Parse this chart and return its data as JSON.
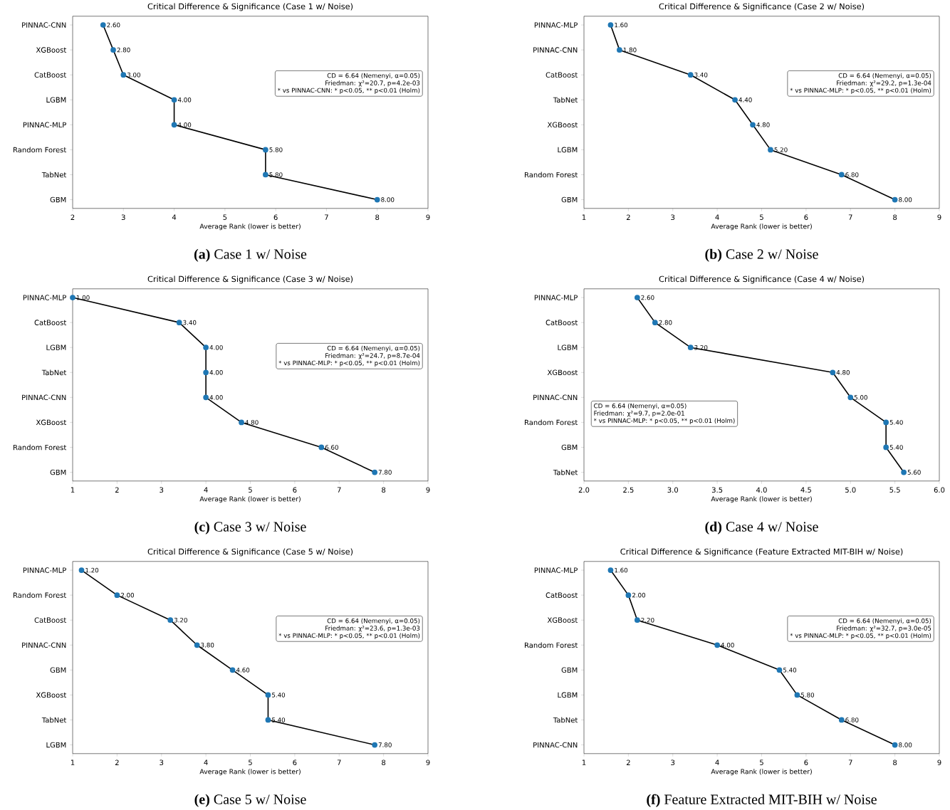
{
  "chart_data": [
    {
      "type": "line",
      "orientation": "horizontal",
      "marker": "circle",
      "color": "#1f77b4",
      "title": "Critical Difference & Significance (Case 1 w/ Noise)",
      "xlabel": "Average Rank (lower is better)",
      "categories": [
        "PINNAC-CNN",
        "XGBoost",
        "CatBoost",
        "LGBM",
        "PINNAC-MLP",
        "Random Forest",
        "TabNet",
        "GBM"
      ],
      "values": [
        2.6,
        2.8,
        3.0,
        4.0,
        4.0,
        5.8,
        5.8,
        8.0
      ],
      "value_labels": [
        "2.60",
        "2.80",
        "3.00",
        "4.00",
        "4.00",
        "5.80",
        "5.80",
        "8.00"
      ],
      "xlim": [
        2,
        9
      ],
      "xticks": [
        2,
        3,
        4,
        5,
        6,
        7,
        8,
        9
      ],
      "annotations": [
        "CD = 6.64 (Nemenyi, α=0.05)",
        "Friedman: χ²=20.7, p=4.2e-03",
        "* vs PINNAC-CNN: * p<0.05, ** p<0.01 (Holm)",
        "**(a)** Case 1 w/ Noise"
      ]
    },
    {
      "type": "line",
      "orientation": "horizontal",
      "marker": "circle",
      "color": "#1f77b4",
      "title": "Critical Difference & Significance (Case 2 w/ Noise)",
      "xlabel": "Average Rank (lower is better)",
      "categories": [
        "PINNAC-MLP",
        "PINNAC-CNN",
        "CatBoost",
        "TabNet",
        "XGBoost",
        "LGBM",
        "Random Forest",
        "GBM"
      ],
      "values": [
        1.6,
        1.8,
        3.4,
        4.4,
        4.8,
        5.2,
        6.8,
        8.0
      ],
      "value_labels": [
        "1.60",
        "1.80",
        "3.40",
        "4.40",
        "4.80",
        "5.20",
        "6.80",
        "8.00"
      ],
      "xlim": [
        1,
        9
      ],
      "xticks": [
        1,
        2,
        3,
        4,
        5,
        6,
        7,
        8,
        9
      ],
      "annotations": [
        "CD = 6.64 (Nemenyi, α=0.05)",
        "Friedman: χ²=29.2, p=1.3e-04",
        "* vs PINNAC-MLP: * p<0.05, ** p<0.01 (Holm)",
        "**(b)** Case 2 w/ Noise"
      ]
    },
    {
      "type": "line",
      "orientation": "horizontal",
      "marker": "circle",
      "color": "#1f77b4",
      "title": "Critical Difference & Significance (Case 3 w/ Noise)",
      "xlabel": "Average Rank (lower is better)",
      "categories": [
        "PINNAC-MLP",
        "CatBoost",
        "LGBM",
        "TabNet",
        "PINNAC-CNN",
        "XGBoost",
        "Random Forest",
        "GBM"
      ],
      "values": [
        1.0,
        3.4,
        4.0,
        4.0,
        4.0,
        4.8,
        6.6,
        7.8
      ],
      "value_labels": [
        "1.00",
        "3.40",
        "4.00",
        "4.00",
        "4.00",
        "4.80",
        "6.60",
        "7.80"
      ],
      "xlim": [
        1,
        9
      ],
      "xticks": [
        1,
        2,
        3,
        4,
        5,
        6,
        7,
        8,
        9
      ],
      "annotations": [
        "CD = 6.64 (Nemenyi, α=0.05)",
        "Friedman: χ²=24.7, p=8.7e-04",
        "* vs PINNAC-MLP: * p<0.05, ** p<0.01 (Holm)",
        "**(c)** Case 3 w/ Noise"
      ]
    },
    {
      "type": "line",
      "orientation": "horizontal",
      "marker": "circle",
      "color": "#1f77b4",
      "title": "Critical Difference & Significance (Case 4 w/ Noise)",
      "xlabel": "Average Rank (lower is better)",
      "categories": [
        "PINNAC-MLP",
        "CatBoost",
        "LGBM",
        "XGBoost",
        "PINNAC-CNN",
        "Random Forest",
        "GBM",
        "TabNet"
      ],
      "values": [
        2.6,
        2.8,
        3.2,
        4.8,
        5.0,
        5.4,
        5.4,
        5.6
      ],
      "value_labels": [
        "2.60",
        "2.80",
        "3.20",
        "4.80",
        "5.00",
        "5.40",
        "5.40",
        "5.60"
      ],
      "xlim": [
        2,
        6
      ],
      "xticks": [
        {
          "value": 2,
          "label": "2.0"
        },
        {
          "value": 2.5,
          "label": "2.5"
        },
        {
          "value": 3,
          "label": "3.0"
        },
        {
          "value": 3.5,
          "label": "3.5"
        },
        {
          "value": 4,
          "label": "4.0"
        },
        {
          "value": 4.5,
          "label": "4.5"
        },
        {
          "value": 5,
          "label": "5.0"
        },
        {
          "value": 5.5,
          "label": "5.5"
        },
        {
          "value": 6,
          "label": "6.0"
        }
      ],
      "annotations": [
        "CD = 6.64 (Nemenyi, α=0.05)",
        "Friedman: χ²=9.7, p=2.0e-01",
        "* vs PINNAC-MLP: * p<0.05, ** p<0.01 (Holm)",
        "**(d)** Case 4 w/ Noise"
      ]
    },
    {
      "type": "line",
      "orientation": "horizontal",
      "marker": "circle",
      "color": "#1f77b4",
      "title": "Critical Difference & Significance (Case 5 w/ Noise)",
      "xlabel": "Average Rank (lower is better)",
      "categories": [
        "PINNAC-MLP",
        "Random Forest",
        "CatBoost",
        "PINNAC-CNN",
        "GBM",
        "XGBoost",
        "TabNet",
        "LGBM"
      ],
      "values": [
        1.2,
        2.0,
        3.2,
        3.8,
        4.6,
        5.4,
        5.4,
        7.8
      ],
      "value_labels": [
        "1.20",
        "2.00",
        "3.20",
        "3.80",
        "4.60",
        "5.40",
        "5.40",
        "7.80"
      ],
      "xlim": [
        1,
        9
      ],
      "xticks": [
        1,
        2,
        3,
        4,
        5,
        6,
        7,
        8,
        9
      ],
      "annotations": [
        "CD = 6.64 (Nemenyi, α=0.05)",
        "Friedman: χ²=23.6, p=1.3e-03",
        "* vs PINNAC-MLP: * p<0.05, ** p<0.01 (Holm)",
        "**(e)** Case 5 w/ Noise"
      ]
    },
    {
      "type": "line",
      "orientation": "horizontal",
      "marker": "circle",
      "color": "#1f77b4",
      "title": "Critical Difference & Significance (Feature Extracted MIT-BIH w/ Noise)",
      "xlabel": "Average Rank (lower is better)",
      "categories": [
        "PINNAC-MLP",
        "CatBoost",
        "XGBoost",
        "Random Forest",
        "GBM",
        "LGBM",
        "TabNet",
        "PINNAC-CNN"
      ],
      "values": [
        1.6,
        2.0,
        2.2,
        4.0,
        5.4,
        5.8,
        6.8,
        8.0
      ],
      "value_labels": [
        "1.60",
        "2.00",
        "2.20",
        "4.00",
        "5.40",
        "5.80",
        "6.80",
        "8.00"
      ],
      "xlim": [
        1,
        9
      ],
      "xticks": [
        1,
        2,
        3,
        4,
        5,
        6,
        7,
        8,
        9
      ],
      "annotations": [
        "CD = 6.64 (Nemenyi, α=0.05)",
        "Friedman: χ²=32.7, p=3.0e-05",
        "* vs PINNAC-MLP: * p<0.05, ** p<0.01 (Holm)",
        "**(f)** Feature Extracted MIT-BIH w/ Noise"
      ]
    }
  ]
}
